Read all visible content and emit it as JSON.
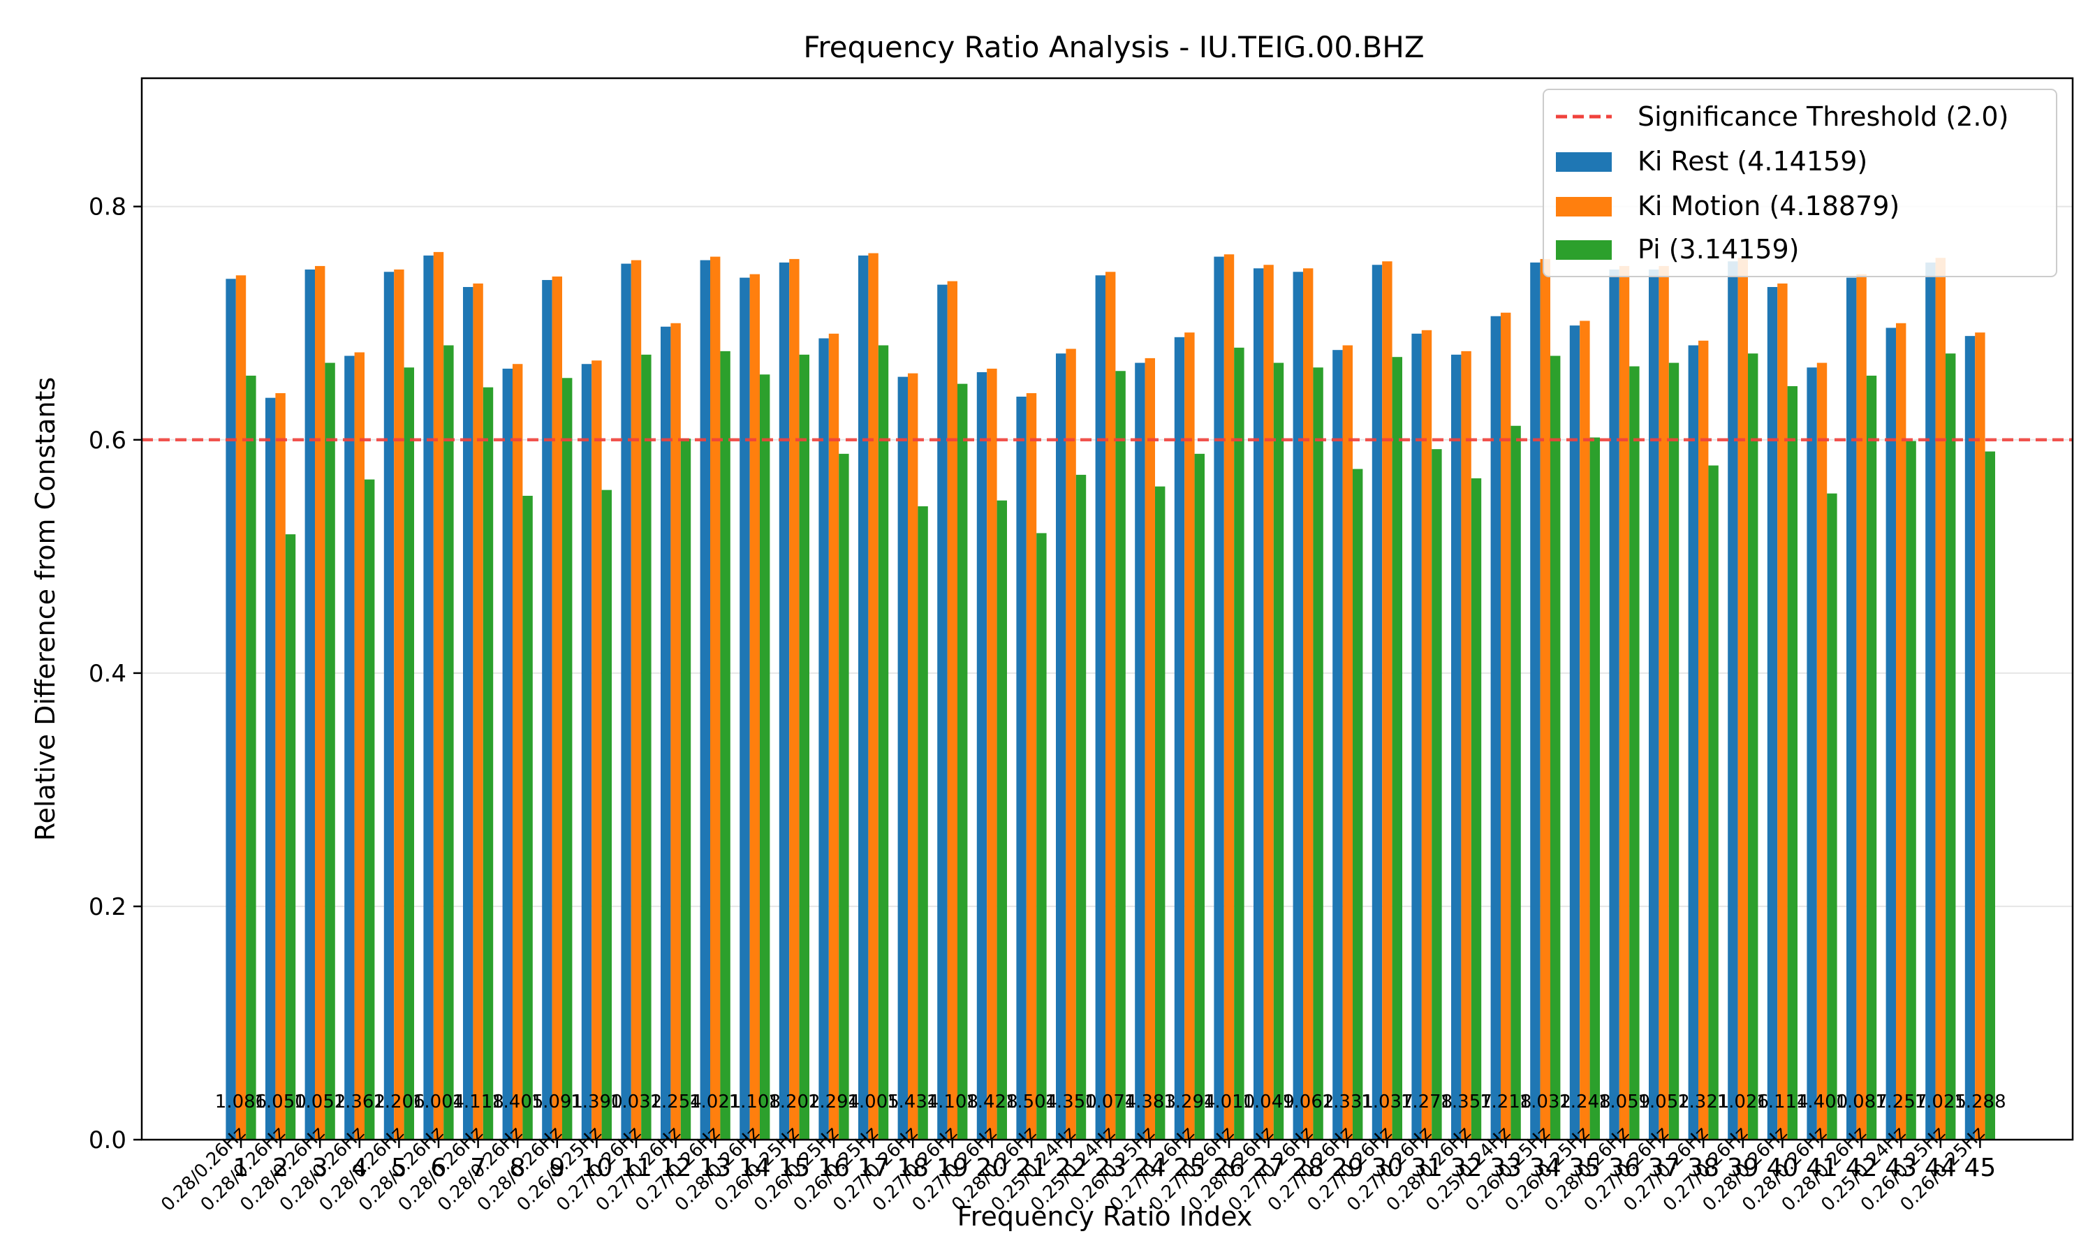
{
  "chart_data": {
    "type": "bar",
    "title": "Frequency Ratio Analysis - IU.TEIG.00.BHZ",
    "xlabel": "Frequency Ratio Index",
    "ylabel": "Relative Difference from Constants",
    "ylim": [
      0,
      0.91
    ],
    "yticks": [
      0.0,
      0.2,
      0.4,
      0.6,
      0.8
    ],
    "ytick_labels": [
      "0.0",
      "0.2",
      "0.4",
      "0.6",
      "0.8"
    ],
    "grid": "horizontal",
    "legend_position": "top-right",
    "threshold": {
      "value": 0.6,
      "label": "Significance Threshold (2.0)",
      "color": "#f0423c",
      "style": "dashed"
    },
    "categories": [
      "1",
      "2",
      "3",
      "4",
      "5",
      "6",
      "7",
      "8",
      "9",
      "10",
      "11",
      "12",
      "13",
      "14",
      "15",
      "16",
      "17",
      "18",
      "19",
      "20",
      "21",
      "22",
      "23",
      "24",
      "25",
      "26",
      "27",
      "28",
      "29",
      "30",
      "31",
      "32",
      "33",
      "34",
      "35",
      "36",
      "37",
      "38",
      "39",
      "40",
      "41",
      "42",
      "43",
      "44",
      "45"
    ],
    "series": [
      {
        "name": "Ki Rest (4.14159)",
        "color": "#1f77b4",
        "values": [
          0.738,
          0.636,
          0.746,
          0.672,
          0.744,
          0.758,
          0.731,
          0.661,
          0.737,
          0.665,
          0.751,
          0.697,
          0.754,
          0.739,
          0.752,
          0.687,
          0.758,
          0.654,
          0.733,
          0.658,
          0.637,
          0.674,
          0.741,
          0.666,
          0.688,
          0.757,
          0.747,
          0.744,
          0.677,
          0.75,
          0.691,
          0.673,
          0.706,
          0.752,
          0.698,
          0.746,
          0.746,
          0.681,
          0.753,
          0.731,
          0.662,
          0.739,
          0.696,
          0.752,
          0.689
        ]
      },
      {
        "name": "Ki Motion (4.18879)",
        "color": "#ff7f0e",
        "values": [
          0.741,
          0.64,
          0.749,
          0.675,
          0.746,
          0.761,
          0.734,
          0.665,
          0.74,
          0.668,
          0.754,
          0.7,
          0.757,
          0.742,
          0.755,
          0.691,
          0.76,
          0.657,
          0.736,
          0.661,
          0.64,
          0.678,
          0.744,
          0.67,
          0.692,
          0.759,
          0.75,
          0.747,
          0.681,
          0.753,
          0.694,
          0.676,
          0.709,
          0.755,
          0.702,
          0.749,
          0.749,
          0.685,
          0.756,
          0.734,
          0.666,
          0.742,
          0.7,
          0.756,
          0.692
        ]
      },
      {
        "name": "Pi (3.14159)",
        "color": "#2ca02c",
        "values": [
          0.655,
          0.519,
          0.666,
          0.566,
          0.662,
          0.681,
          0.645,
          0.552,
          0.653,
          0.557,
          0.673,
          0.601,
          0.676,
          0.656,
          0.673,
          0.588,
          0.681,
          0.543,
          0.648,
          0.548,
          0.52,
          0.57,
          0.659,
          0.56,
          0.588,
          0.679,
          0.666,
          0.662,
          0.575,
          0.671,
          0.592,
          0.567,
          0.612,
          0.672,
          0.602,
          0.663,
          0.666,
          0.578,
          0.674,
          0.646,
          0.554,
          0.655,
          0.599,
          0.674,
          0.59
        ]
      }
    ],
    "bar_annotations": [
      "0.28/0.26Hz",
      "0.28/0.26Hz",
      "0.28/0.26Hz",
      "0.28/0.26Hz",
      "0.28/0.26Hz",
      "0.28/0.26Hz",
      "0.28/0.26Hz",
      "0.28/0.26Hz",
      "0.28/0.26Hz",
      "0.26/0.25Hz",
      "0.27/0.26Hz",
      "0.27/0.26Hz",
      "0.27/0.26Hz",
      "0.28/0.26Hz",
      "0.26/0.25Hz",
      "0.26/0.25Hz",
      "0.26/0.25Hz",
      "0.27/0.26Hz",
      "0.27/0.26Hz",
      "0.27/0.26Hz",
      "0.28/0.26Hz",
      "0.25/0.24Hz",
      "0.25/0.24Hz",
      "0.26/0.25Hz",
      "0.27/0.26Hz",
      "0.27/0.26Hz",
      "0.28/0.26Hz",
      "0.27/0.26Hz",
      "0.27/0.26Hz",
      "0.27/0.26Hz",
      "0.27/0.26Hz",
      "0.28/0.26Hz",
      "0.25/0.24Hz",
      "0.26/0.25Hz",
      "0.26/0.25Hz",
      "0.28/0.26Hz",
      "0.27/0.26Hz",
      "0.27/0.26Hz",
      "0.27/0.26Hz",
      "0.28/0.26Hz",
      "0.28/0.26Hz",
      "0.28/0.26Hz",
      "0.25/0.24Hz",
      "0.26/0.25Hz",
      "0.26/0.25Hz"
    ],
    "bar_value_labels": [
      "1.086",
      "1.050",
      "1.052",
      "1.362",
      "1.206",
      "1.004",
      "1.118",
      "1.405",
      "1.091",
      "1.390",
      "1.032",
      "1.254",
      "1.021",
      "1.108",
      "1.202",
      "1.294",
      "1.005",
      "1.434",
      "1.108",
      "1.428",
      "1.504",
      "1.350",
      "1.074",
      "1.383",
      "1.294",
      "1.010",
      "1.049",
      "1.062",
      "1.331",
      "1.037",
      "1.278",
      "1.357",
      "1.218",
      "1.032",
      "1.248",
      "1.059",
      "1.052",
      "1.321",
      "1.026",
      "1.114",
      "1.400",
      "1.087",
      "1.257",
      "1.025",
      "1.288"
    ]
  }
}
